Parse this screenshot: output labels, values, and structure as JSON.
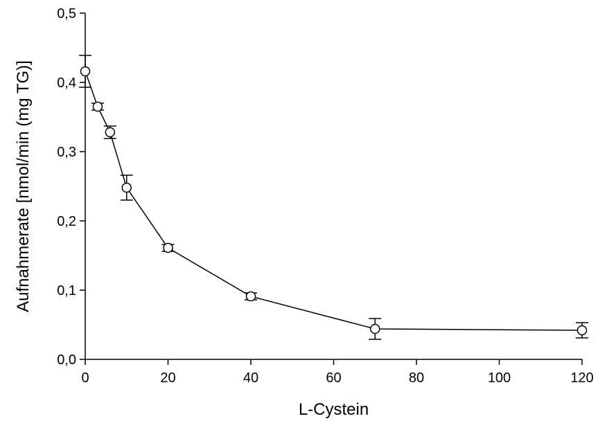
{
  "chart_data": {
    "type": "scatter",
    "xlabel": "L-Cystein",
    "ylabel": "Aufnahmerate [nmol/min (mg TG)]",
    "xlim": [
      0,
      120
    ],
    "ylim": [
      0,
      0.5
    ],
    "xticks": [
      0,
      20,
      40,
      60,
      80,
      100,
      120
    ],
    "xtick_labels": [
      "0",
      "20",
      "40",
      "60",
      "80",
      "100",
      "120"
    ],
    "yticks": [
      0,
      0.1,
      0.2,
      0.3,
      0.4,
      0.5
    ],
    "ytick_labels": [
      "0,0",
      "0,1",
      "0,2",
      "0,3",
      "0,4",
      "0,5"
    ],
    "grid": false,
    "connected": true,
    "marker": "open-circle",
    "colors": {
      "line": "#000000",
      "marker_fill": "#ffffff",
      "marker_edge": "#000000"
    },
    "series": [
      {
        "x": [
          0,
          3,
          6,
          10,
          20,
          40,
          70,
          120
        ],
        "y": [
          0.416,
          0.365,
          0.328,
          0.248,
          0.161,
          0.091,
          0.044,
          0.042
        ],
        "error": [
          0.023,
          0.005,
          0.009,
          0.018,
          0.005,
          0.005,
          0.015,
          0.011
        ]
      }
    ]
  }
}
